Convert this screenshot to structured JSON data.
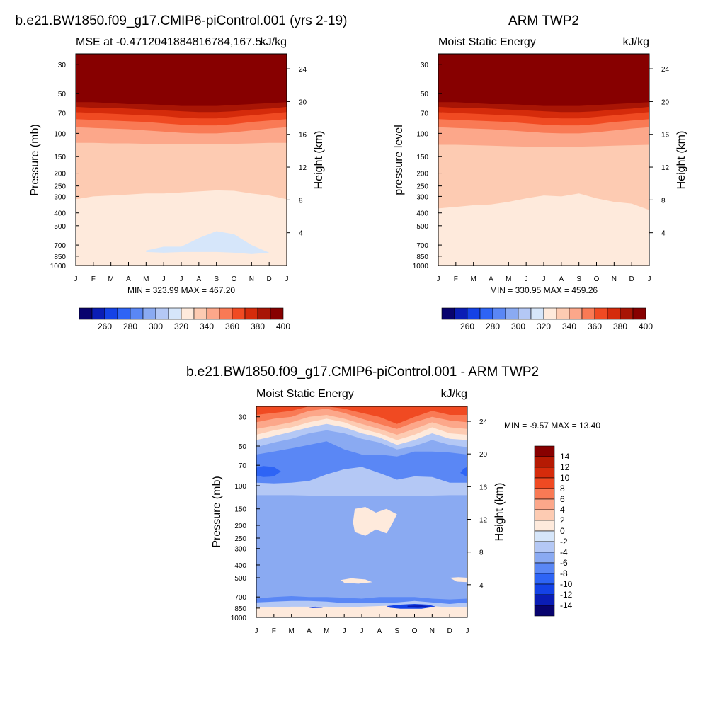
{
  "figure": {
    "panels": [
      {
        "title": "b.e21.BW1850.f09_g17.CMIP6-piControl.001 (yrs 2-19)",
        "left_string": "MSE at -0.4712041884816784,167.5",
        "right_string": "kJ/kg",
        "y_label": "Pressure (mb)",
        "y2_label": "Height (km)",
        "stats": "MIN = 323.99 MAX = 467.20"
      },
      {
        "title": "ARM TWP2",
        "left_string": "Moist Static Energy",
        "right_string": "kJ/kg",
        "y_label": "pressure level",
        "y2_label": "Height (km)",
        "stats": "MIN = 330.95 MAX = 459.26"
      },
      {
        "title": "b.e21.BW1850.f09_g17.CMIP6-piControl.001 - ARM TWP2",
        "left_string": "Moist Static Energy",
        "right_string": "kJ/kg",
        "y_label": "Pressure (mb)",
        "y2_label": "Height (km)",
        "stats": "MIN =  -9.57 MAX =  13.40"
      }
    ],
    "colorbar_top_labels": [
      "260",
      "280",
      "300",
      "320",
      "340",
      "360",
      "380",
      "400"
    ],
    "colorbar_top_colors": [
      "#08036e",
      "#0a1db5",
      "#1442e6",
      "#2e64f5",
      "#5a87f5",
      "#8aaaf2",
      "#b4c8f5",
      "#d6e6fa",
      "#feeadc",
      "#fdcbb2",
      "#fca78a",
      "#f97a55",
      "#f04a22",
      "#d52b0b",
      "#a81505",
      "#870000"
    ],
    "colorbar_diff_labels": [
      "14",
      "12",
      "10",
      "8",
      "6",
      "4",
      "2",
      "0",
      "-2",
      "-4",
      "-6",
      "-8",
      "-10",
      "-12",
      "-14"
    ],
    "colorbar_diff_colors": [
      "#870000",
      "#b51a03",
      "#d52b0b",
      "#f04a22",
      "#f97a55",
      "#fca78a",
      "#fdcbb2",
      "#feeadc",
      "#d6e6fa",
      "#b4c8f5",
      "#8aaaf2",
      "#5a87f5",
      "#2e64f5",
      "#1442e6",
      "#0a1db5",
      "#08036e"
    ]
  },
  "chart_data": [
    {
      "type": "heatmap",
      "title": "b.e21.BW1850.f09_g17.CMIP6-piControl.001 (yrs 2-19)",
      "subtitle_left": "MSE at -0.4712041884816784,167.5",
      "subtitle_right": "kJ/kg",
      "xlabel": "",
      "ylabel": "Pressure (mb)",
      "y2label": "Height (km)",
      "x_ticks": [
        "J",
        "F",
        "M",
        "A",
        "M",
        "J",
        "J",
        "A",
        "S",
        "O",
        "N",
        "D",
        "J"
      ],
      "y_ticks": [
        30,
        50,
        70,
        100,
        150,
        200,
        250,
        300,
        400,
        500,
        700,
        850,
        1000
      ],
      "y_range": [
        1000,
        25
      ],
      "y2_ticks": [
        4,
        8,
        12,
        16,
        20,
        24
      ],
      "levels": [
        260,
        270,
        280,
        290,
        300,
        310,
        320,
        330,
        340,
        350,
        360,
        370,
        380,
        390,
        400
      ],
      "months": [
        1,
        2,
        3,
        4,
        5,
        6,
        7,
        8,
        9,
        10,
        11,
        12,
        13
      ],
      "band_value_above": [
        400,
        390,
        380,
        370,
        360,
        350,
        340,
        330
      ],
      "band_boundaries_pressure": [
        [
          58,
          58,
          59,
          60,
          60,
          61,
          62,
          62,
          62,
          61,
          60,
          59,
          58
        ],
        [
          63,
          64,
          64,
          65,
          66,
          67,
          68,
          69,
          69,
          68,
          66,
          65,
          63
        ],
        [
          69,
          70,
          71,
          72,
          73,
          74,
          76,
          77,
          77,
          75,
          73,
          71,
          69
        ],
        [
          78,
          79,
          80,
          81,
          82,
          84,
          86,
          87,
          87,
          85,
          82,
          80,
          78
        ],
        [
          90,
          91,
          92,
          93,
          95,
          97,
          99,
          100,
          100,
          98,
          95,
          92,
          90
        ],
        [
          118,
          118,
          119,
          119,
          120,
          120,
          120,
          121,
          121,
          120,
          119,
          118,
          118
        ],
        [
          315,
          300,
          295,
          290,
          285,
          285,
          280,
          275,
          270,
          272,
          285,
          295,
          315
        ],
        [
          930,
          930,
          930,
          930,
          930,
          930,
          930,
          930,
          930,
          930,
          930,
          930,
          930
        ]
      ],
      "patches": [
        {
          "value_range": [
            320,
            330
          ],
          "boundary": [
            [
              5,
              770
            ],
            [
              6,
              720
            ],
            [
              7,
              720
            ],
            [
              8,
              620
            ],
            [
              9,
              550
            ],
            [
              10,
              580
            ],
            [
              11,
              700
            ],
            [
              12,
              800
            ],
            [
              11,
              820
            ],
            [
              10,
              800
            ],
            [
              9,
              790
            ],
            [
              8,
              790
            ],
            [
              7,
              790
            ],
            [
              6,
              800
            ],
            [
              5,
              790
            ]
          ]
        }
      ],
      "min": 323.99,
      "max": 467.2
    },
    {
      "type": "heatmap",
      "title": "ARM TWP2",
      "subtitle_left": "Moist Static Energy",
      "subtitle_right": "kJ/kg",
      "xlabel": "",
      "ylabel": "pressure level",
      "y2label": "Height (km)",
      "x_ticks": [
        "J",
        "F",
        "M",
        "A",
        "M",
        "J",
        "J",
        "A",
        "S",
        "O",
        "N",
        "D",
        "J"
      ],
      "y_ticks": [
        30,
        50,
        70,
        100,
        150,
        200,
        250,
        300,
        400,
        500,
        700,
        850,
        1000
      ],
      "y_range": [
        1000,
        25
      ],
      "y2_ticks": [
        4,
        8,
        12,
        16,
        20,
        24
      ],
      "levels": [
        260,
        270,
        280,
        290,
        300,
        310,
        320,
        330,
        340,
        350,
        360,
        370,
        380,
        390,
        400
      ],
      "months": [
        1,
        2,
        3,
        4,
        5,
        6,
        7,
        8,
        9,
        10,
        11,
        12,
        13
      ],
      "band_value_above": [
        400,
        390,
        380,
        370,
        360,
        350,
        340,
        330
      ],
      "band_boundaries_pressure": [
        [
          58,
          58,
          59,
          60,
          60,
          61,
          62,
          62,
          62,
          61,
          60,
          59,
          58
        ],
        [
          63,
          64,
          64,
          65,
          66,
          67,
          68,
          69,
          69,
          68,
          66,
          65,
          63
        ],
        [
          69,
          70,
          71,
          72,
          73,
          74,
          76,
          77,
          77,
          75,
          73,
          71,
          69
        ],
        [
          78,
          79,
          80,
          81,
          82,
          84,
          86,
          87,
          87,
          85,
          82,
          80,
          78
        ],
        [
          90,
          91,
          92,
          93,
          95,
          97,
          99,
          100,
          100,
          98,
          95,
          92,
          90
        ],
        [
          122,
          122,
          123,
          124,
          125,
          126,
          126,
          126,
          126,
          125,
          124,
          123,
          122
        ],
        [
          370,
          360,
          350,
          345,
          330,
          310,
          295,
          300,
          285,
          310,
          330,
          340,
          380
        ],
        [
          930,
          930,
          930,
          930,
          930,
          930,
          930,
          930,
          930,
          930,
          930,
          930,
          930
        ]
      ],
      "patches": [],
      "min": 330.95,
      "max": 459.26
    },
    {
      "type": "heatmap",
      "title": "b.e21.BW1850.f09_g17.CMIP6-piControl.001 - ARM TWP2",
      "subtitle_left": "Moist Static Energy",
      "subtitle_right": "kJ/kg",
      "xlabel": "",
      "ylabel": "Pressure (mb)",
      "y2label": "Height (km)",
      "x_ticks": [
        "J",
        "F",
        "M",
        "A",
        "M",
        "J",
        "J",
        "A",
        "S",
        "O",
        "N",
        "D",
        "J"
      ],
      "y_ticks": [
        30,
        50,
        70,
        100,
        150,
        200,
        250,
        300,
        400,
        500,
        700,
        850,
        1000
      ],
      "y_range": [
        1000,
        25
      ],
      "y2_ticks": [
        4,
        8,
        12,
        16,
        20,
        24
      ],
      "levels": [
        -14,
        -12,
        -10,
        -8,
        -6,
        -4,
        -2,
        0,
        2,
        4,
        6,
        8,
        10,
        12,
        14
      ],
      "months": [
        1,
        2,
        3,
        4,
        5,
        6,
        7,
        8,
        9,
        10,
        11,
        12,
        13
      ],
      "band_value_above": [
        8,
        6,
        4,
        2,
        0,
        -2,
        -4,
        -6,
        -2,
        -4,
        -6,
        -2,
        0
      ],
      "band_boundaries_pressure": [
        [
          29,
          28,
          27,
          25,
          25,
          26,
          28,
          30,
          34,
          30,
          27,
          29,
          29
        ],
        [
          33,
          31,
          30,
          27,
          26,
          28,
          31,
          34,
          37,
          33,
          30,
          32,
          33
        ],
        [
          37,
          35,
          33,
          30,
          29,
          31,
          34,
          37,
          41,
          37,
          33,
          36,
          37
        ],
        [
          41,
          38,
          36,
          33,
          31,
          33,
          37,
          40,
          45,
          41,
          36,
          40,
          41
        ],
        [
          45,
          42,
          39,
          36,
          34,
          36,
          40,
          43,
          49,
          45,
          40,
          44,
          45
        ],
        [
          51,
          47,
          44,
          40,
          38,
          40,
          44,
          47,
          53,
          50,
          45,
          49,
          51
        ],
        [
          58,
          55,
          52,
          49,
          46,
          53,
          58,
          58,
          60,
          55,
          55,
          56,
          58
        ],
        [
          95,
          96,
          95,
          92,
          82,
          75,
          72,
          80,
          90,
          85,
          86,
          95,
          95
        ],
        [
          118,
          118,
          118,
          119,
          119,
          119,
          119,
          119,
          119,
          119,
          119,
          118,
          118
        ],
        [
          720,
          700,
          690,
          700,
          700,
          710,
          720,
          700,
          700,
          700,
          720,
          730,
          720
        ],
        [
          770,
          760,
          750,
          750,
          760,
          780,
          780,
          780,
          770,
          750,
          770,
          790,
          770
        ],
        [
          830,
          840,
          830,
          830,
          830,
          840,
          830,
          820,
          810,
          800,
          820,
          840,
          830
        ],
        [
          900,
          900,
          900,
          900,
          900,
          900,
          900,
          900,
          900,
          900,
          900,
          900,
          900
        ]
      ],
      "patches": [
        {
          "value_range": [
            -10,
            -8
          ],
          "boundary": [
            [
              1,
              73
            ],
            [
              1.4,
              71
            ],
            [
              2,
              72
            ],
            [
              2.4,
              78
            ],
            [
              2,
              85
            ],
            [
              1.4,
              86
            ],
            [
              1,
              84
            ]
          ]
        },
        {
          "value_range": [
            -10,
            -8
          ],
          "boundary": [
            [
              13,
              72
            ],
            [
              12.8,
              74
            ],
            [
              12.6,
              80
            ],
            [
              13,
              86
            ]
          ]
        },
        {
          "value_range": [
            0,
            2
          ],
          "boundary": [
            [
              6.6,
              150
            ],
            [
              7.2,
              145
            ],
            [
              7.8,
              160
            ],
            [
              8.4,
              150
            ],
            [
              9,
              165
            ],
            [
              8.6,
              210
            ],
            [
              8.4,
              230
            ],
            [
              7.8,
              215
            ],
            [
              7.2,
              240
            ],
            [
              6.6,
              225
            ],
            [
              6.5,
              190
            ]
          ]
        },
        {
          "value_range": [
            0,
            2
          ],
          "boundary": [
            [
              5.8,
              520
            ],
            [
              6.4,
              505
            ],
            [
              7.2,
              515
            ],
            [
              7.6,
              540
            ],
            [
              6.8,
              555
            ],
            [
              6,
              545
            ]
          ]
        },
        {
          "value_range": [
            0,
            2
          ],
          "boundary": [
            [
              12,
              500
            ],
            [
              12.5,
              495
            ],
            [
              13,
              500
            ],
            [
              13,
              540
            ],
            [
              12.4,
              535
            ]
          ]
        },
        {
          "value_range": [
            -12,
            -10
          ],
          "boundary": [
            [
              8.4,
              820
            ],
            [
              9.2,
              800
            ],
            [
              10,
              790
            ],
            [
              10.8,
              800
            ],
            [
              11.2,
              830
            ],
            [
              10.4,
              860
            ],
            [
              9.2,
              860
            ],
            [
              8.6,
              845
            ]
          ]
        },
        {
          "value_range": [
            -14,
            -12
          ],
          "boundary": [
            [
              9.6,
              815
            ],
            [
              10.4,
              810
            ],
            [
              10.9,
              830
            ],
            [
              10.2,
              845
            ],
            [
              9.6,
              835
            ]
          ]
        },
        {
          "value_range": [
            -12,
            -10
          ],
          "boundary": [
            [
              3.8,
              835
            ],
            [
              4.4,
              830
            ],
            [
              4.8,
              845
            ],
            [
              4.2,
              850
            ]
          ]
        }
      ],
      "min": -9.57,
      "max": 13.4
    }
  ]
}
